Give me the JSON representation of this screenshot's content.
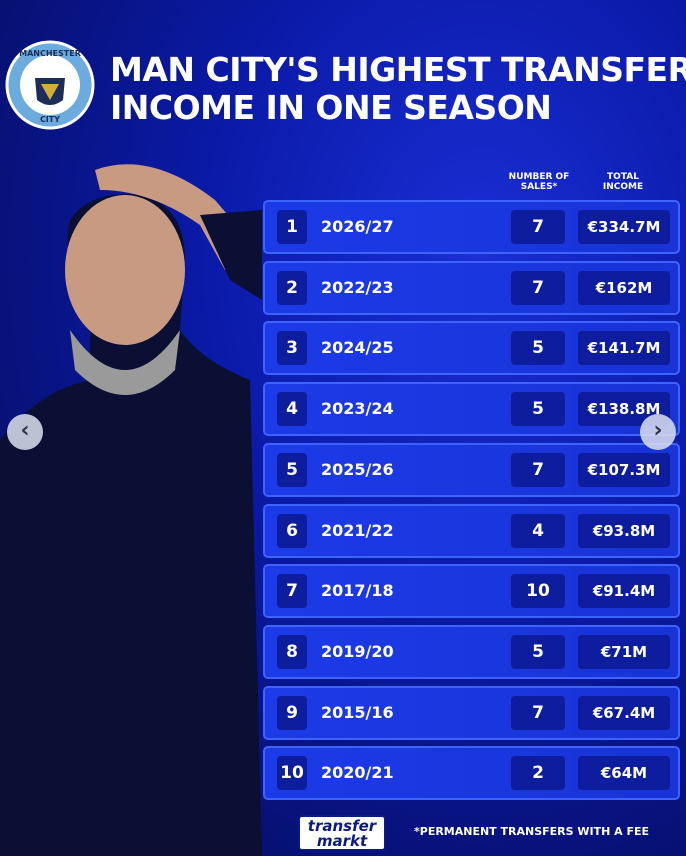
{
  "header": {
    "title_line1": "MAN CITY'S HIGHEST TRANSFER",
    "title_line2": "INCOME IN ONE SEASON",
    "crest_top": "MANCHESTER",
    "crest_bottom": "CITY"
  },
  "table": {
    "columns": [
      "NUMBER OF SALES*",
      "TOTAL INCOME"
    ],
    "rows": [
      [
        "1",
        "2026/27",
        "7",
        "€334.7M"
      ],
      [
        "2",
        "2022/23",
        "7",
        "€162M"
      ],
      [
        "3",
        "2024/25",
        "5",
        "€141.7M"
      ],
      [
        "4",
        "2023/24",
        "5",
        "€138.8M"
      ],
      [
        "5",
        "2025/26",
        "7",
        "€107.3M"
      ],
      [
        "6",
        "2021/22",
        "4",
        "€93.8M"
      ],
      [
        "7",
        "2017/18",
        "10",
        "€91.4M"
      ],
      [
        "8",
        "2019/20",
        "5",
        "€71M"
      ],
      [
        "9",
        "2015/16",
        "7",
        "€67.4M"
      ],
      [
        "10",
        "2020/21",
        "2",
        "€64M"
      ]
    ]
  },
  "footer": {
    "logo_line1": "transfer",
    "logo_line2": "markt",
    "note": "*PERMANENT TRANSFERS WITH A FEE"
  }
}
